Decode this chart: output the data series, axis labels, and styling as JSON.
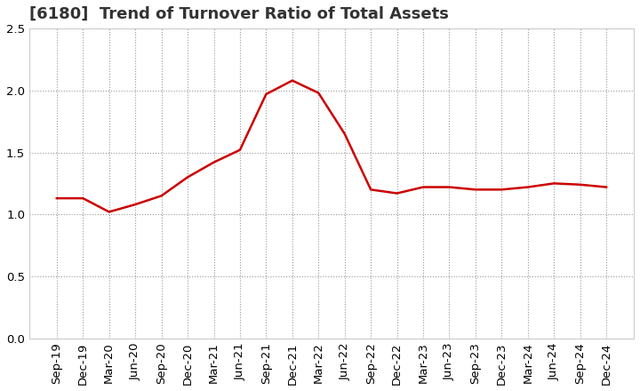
{
  "title": "[6180]  Trend of Turnover Ratio of Total Assets",
  "title_fontsize": 13,
  "x_labels": [
    "Sep-19",
    "Dec-19",
    "Mar-20",
    "Jun-20",
    "Sep-20",
    "Dec-20",
    "Mar-21",
    "Jun-21",
    "Sep-21",
    "Dec-21",
    "Mar-22",
    "Jun-22",
    "Sep-22",
    "Dec-22",
    "Mar-23",
    "Jun-23",
    "Sep-23",
    "Dec-23",
    "Mar-24",
    "Jun-24",
    "Sep-24",
    "Dec-24"
  ],
  "y_values": [
    1.13,
    1.13,
    1.02,
    1.08,
    1.15,
    1.3,
    1.42,
    1.52,
    1.97,
    2.08,
    1.98,
    1.65,
    1.2,
    1.17,
    1.22,
    1.22,
    1.2,
    1.2,
    1.22,
    1.25,
    1.24,
    1.22
  ],
  "line_color": "#cc0000",
  "line_width": 1.8,
  "ylim": [
    0.0,
    2.5
  ],
  "yticks": [
    0.0,
    0.5,
    1.0,
    1.5,
    2.0,
    2.5
  ],
  "grid_color": "#999999",
  "bg_color": "#ffffff",
  "plot_bg_color": "#ffffff",
  "tick_label_fontsize": 9.5,
  "title_color": "#333333"
}
